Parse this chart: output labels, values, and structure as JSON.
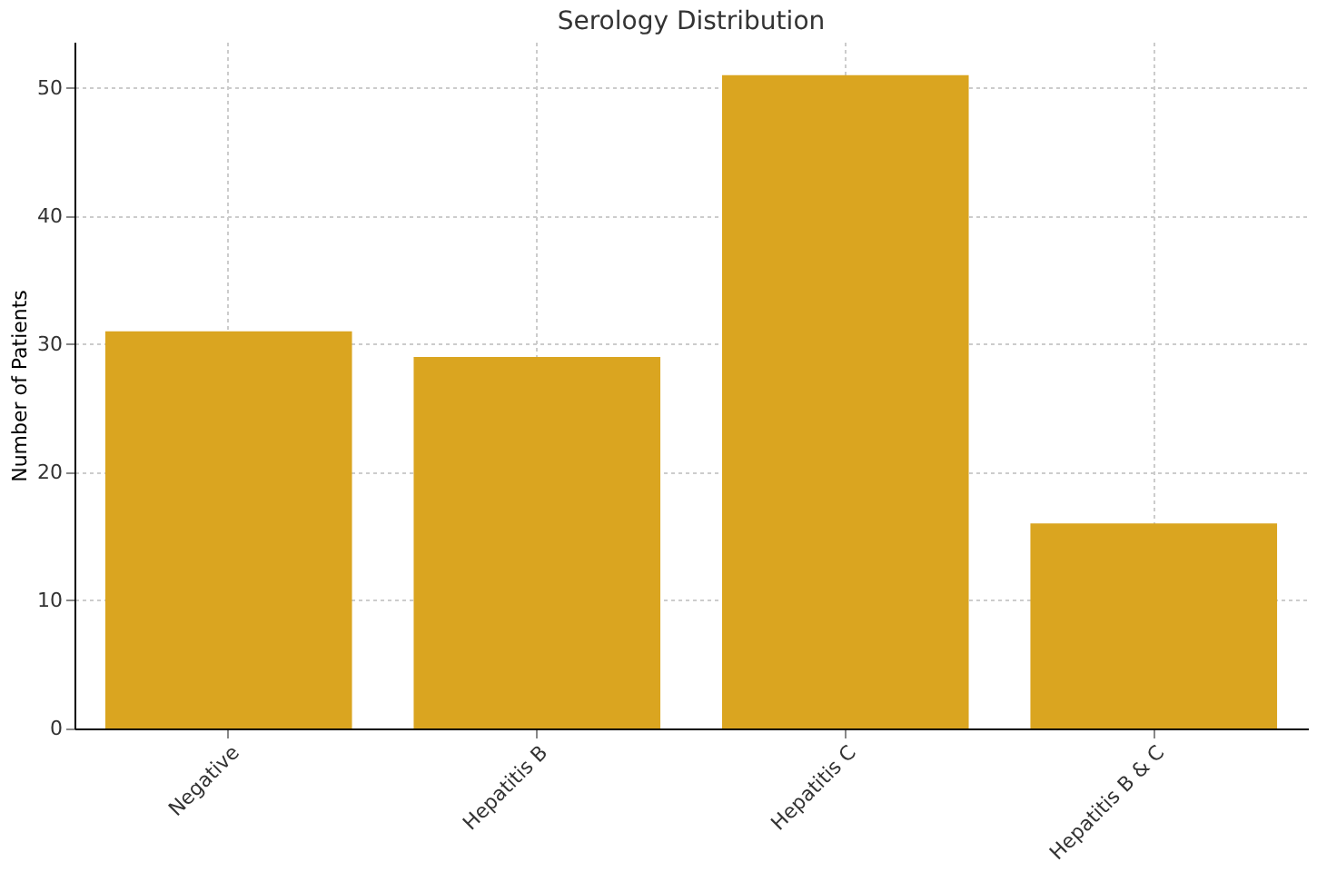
{
  "chart_data": {
    "type": "bar",
    "title": "Serology Distribution",
    "ylabel": "Number of Patients",
    "categories": [
      "Negative",
      "Hepatitis B",
      "Hepatitis C",
      "Hepatitis B & C"
    ],
    "values": [
      31,
      29,
      51,
      16
    ],
    "color": "#daa520",
    "ylim": [
      0,
      53.6
    ],
    "yticks": [
      0,
      10,
      20,
      30,
      40,
      50
    ],
    "grid": true
  }
}
